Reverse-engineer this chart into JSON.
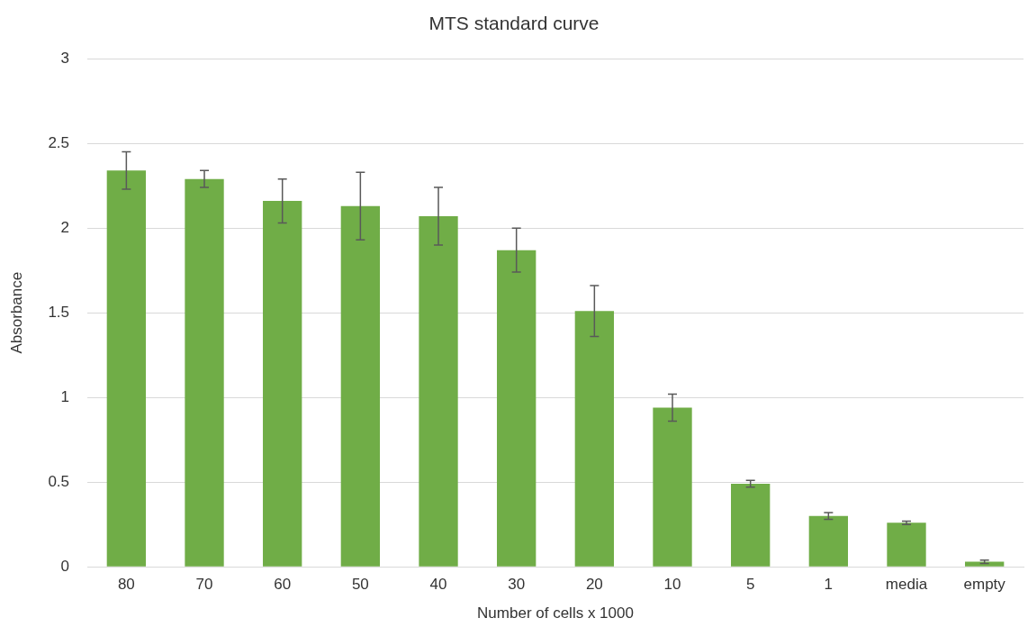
{
  "chart_data": {
    "type": "bar",
    "title": "MTS standard curve",
    "xlabel": "Number of cells x 1000",
    "ylabel": "Absorbance",
    "categories": [
      "80",
      "70",
      "60",
      "50",
      "40",
      "30",
      "20",
      "10",
      "5",
      "1",
      "media",
      "empty"
    ],
    "values": [
      2.34,
      2.29,
      2.16,
      2.13,
      2.07,
      1.87,
      1.51,
      0.94,
      0.49,
      0.3,
      0.26,
      0.03
    ],
    "errors": [
      0.11,
      0.05,
      0.13,
      0.2,
      0.17,
      0.13,
      0.15,
      0.08,
      0.02,
      0.02,
      0.01,
      0.01
    ],
    "color": "#70ad47",
    "ylim": [
      0,
      3
    ],
    "yticks": [
      0,
      0.5,
      1,
      1.5,
      2,
      2.5,
      3
    ],
    "grid": "y",
    "legend": false
  }
}
